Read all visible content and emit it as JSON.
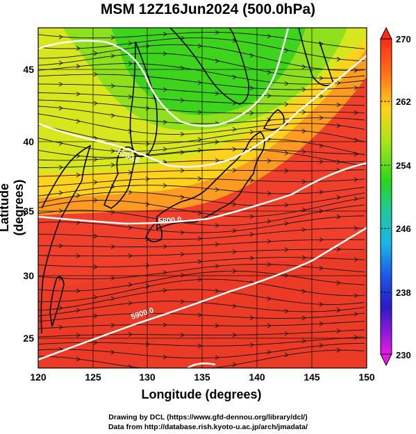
{
  "title": "MSM 12Z16Jun2024 (500.0hPa)",
  "x_axis": {
    "label": "Longitude (degrees)",
    "ticks": [
      "120",
      "125",
      "130",
      "135",
      "140",
      "145",
      "150"
    ]
  },
  "y_axis": {
    "label": "Latitude  (degrees)",
    "ticks": [
      "25",
      "30",
      "35",
      "40",
      "45"
    ]
  },
  "colorbar": {
    "ticks": [
      "270",
      "262",
      "254",
      "246",
      "238",
      "230"
    ],
    "range": [
      230,
      270
    ]
  },
  "contour_labels": [
    "5700.0",
    "5800.0",
    "5900.0"
  ],
  "credits": {
    "drawing": "Drawing by DCL (https://www.gfd-dennou.org/library/dcl/)",
    "data": "Data from http://database.rish.kyoto-u.ac.jp/arch/jmadata/"
  },
  "colors": {
    "warm": "#f24a32",
    "mid": "#ffd830",
    "cool": "#3ad62a",
    "contour": "#ffffff"
  }
}
